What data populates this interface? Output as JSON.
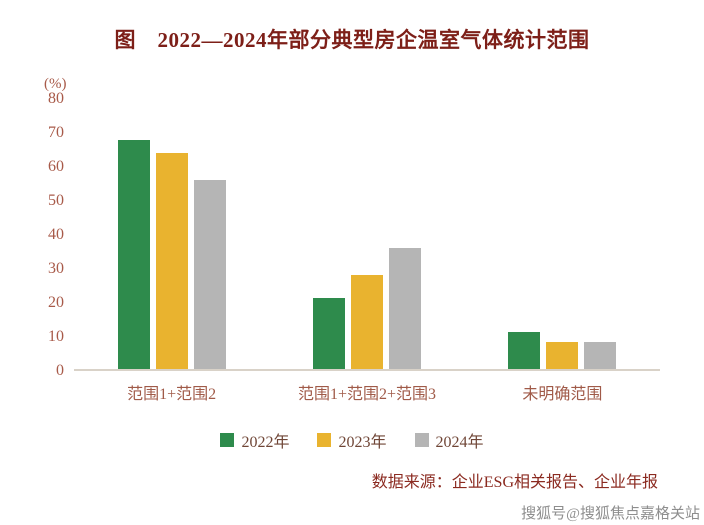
{
  "title": "图　2022—2024年部分典型房企温室气体统计范围",
  "chart_data": {
    "type": "bar",
    "title": "图　2022—2024年部分典型房企温室气体统计范围",
    "unit_label": "(%)",
    "categories": [
      "范围1+范围2",
      "范围1+范围2+范围3",
      "未明确范围"
    ],
    "series": [
      {
        "name": "2022年",
        "color": "#2e8b4c",
        "values": [
          68,
          21,
          11
        ]
      },
      {
        "name": "2023年",
        "color": "#e9b32f",
        "values": [
          64,
          28,
          8
        ]
      },
      {
        "name": "2024年",
        "color": "#b5b5b5",
        "values": [
          56,
          36,
          8
        ]
      }
    ],
    "ylim": [
      0,
      80
    ],
    "yticks": [
      0,
      10,
      20,
      30,
      40,
      50,
      60,
      70,
      80
    ],
    "grid": false,
    "legend_position": "bottom"
  },
  "source": "数据来源：企业ESG相关报告、企业年报",
  "watermark": "搜狐号@搜狐焦点嘉格关站"
}
